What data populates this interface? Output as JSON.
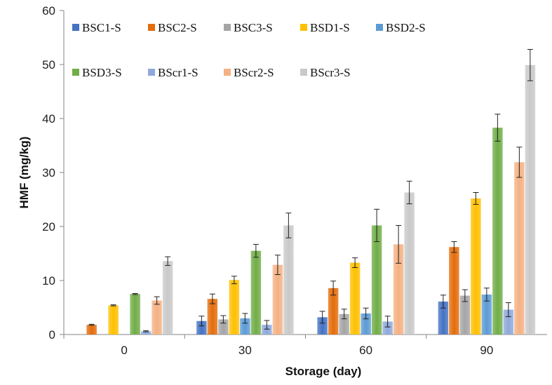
{
  "chart_data": {
    "type": "bar",
    "xlabel": "Storage (day)",
    "ylabel": "HMF (mg/kg)",
    "ylim": [
      0,
      60
    ],
    "yticks": [
      0,
      10,
      20,
      30,
      40,
      50,
      60
    ],
    "grid": false,
    "legend_position": "top-left",
    "categories": [
      "0",
      "30",
      "60",
      "90"
    ],
    "series": [
      {
        "name": "BSC1-S",
        "color": "#4472C4",
        "values": [
          0,
          2.5,
          3.2,
          6.1
        ],
        "errors": [
          0,
          0.9,
          1.1,
          1.2
        ]
      },
      {
        "name": "BSC2-S",
        "color": "#E46C0A",
        "values": [
          1.8,
          6.6,
          8.6,
          16.2
        ],
        "errors": [
          0.1,
          0.9,
          1.3,
          1.0
        ]
      },
      {
        "name": "BSC3-S",
        "color": "#A5A5A5",
        "values": [
          0,
          2.8,
          3.8,
          7.2
        ],
        "errors": [
          0,
          0.7,
          0.9,
          1.1
        ]
      },
      {
        "name": "BSD1-S",
        "color": "#FFC000",
        "values": [
          5.4,
          10.1,
          13.3,
          25.2
        ],
        "errors": [
          0.1,
          0.7,
          0.9,
          1.1
        ]
      },
      {
        "name": "BSD2-S",
        "color": "#5B9BD5",
        "values": [
          0,
          3.0,
          3.9,
          7.4
        ],
        "errors": [
          0,
          0.9,
          1.0,
          1.2
        ]
      },
      {
        "name": "BSD3-S",
        "color": "#70AD47",
        "values": [
          7.5,
          15.5,
          20.2,
          38.3
        ],
        "errors": [
          0.1,
          1.2,
          3.0,
          2.5
        ]
      },
      {
        "name": "BScr1-S",
        "color": "#8EA9DB",
        "values": [
          0.6,
          1.8,
          2.4,
          4.6
        ],
        "errors": [
          0.1,
          0.8,
          1.0,
          1.3
        ]
      },
      {
        "name": "BScr2-S",
        "color": "#F4B183",
        "values": [
          6.3,
          12.9,
          16.7,
          31.9
        ],
        "errors": [
          0.7,
          1.8,
          3.5,
          2.8
        ]
      },
      {
        "name": "BScr3-S",
        "color": "#C9C9C9",
        "values": [
          13.6,
          20.2,
          26.3,
          49.9
        ],
        "errors": [
          0.8,
          2.3,
          2.1,
          2.9
        ]
      }
    ]
  }
}
